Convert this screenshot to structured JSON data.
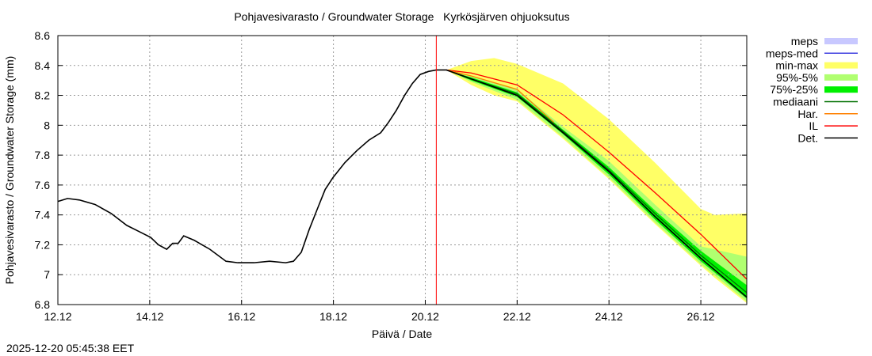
{
  "chart_data": {
    "type": "line",
    "title": "Pohjavesivarasto / Groundwater Storage   Kyrkösjärven ohjuoksutus",
    "xlabel": "Päivä / Date",
    "ylabel": "Pohjavesivarasto / Groundwater Storage (mm)",
    "timestamp": "2025-12-20 05:45:38 EET",
    "xlim": [
      12,
      27
    ],
    "ylim": [
      6.8,
      8.6
    ],
    "grid": true,
    "legend_position": "outside-right",
    "x_unit": "day of December 2025",
    "xticks": [
      {
        "v": 12,
        "label": "12.12"
      },
      {
        "v": 14,
        "label": "14.12"
      },
      {
        "v": 16,
        "label": "16.12"
      },
      {
        "v": 18,
        "label": "18.12"
      },
      {
        "v": 20,
        "label": "20.12"
      },
      {
        "v": 22,
        "label": "22.12"
      },
      {
        "v": 24,
        "label": "24.12"
      },
      {
        "v": 26,
        "label": "26.12"
      }
    ],
    "yticks": [
      {
        "v": 6.8,
        "label": "6.8"
      },
      {
        "v": 7,
        "label": "7"
      },
      {
        "v": 7.2,
        "label": "7.2"
      },
      {
        "v": 7.4,
        "label": "7.4"
      },
      {
        "v": 7.6,
        "label": "7.6"
      },
      {
        "v": 7.8,
        "label": "7.8"
      },
      {
        "v": 8,
        "label": "8"
      },
      {
        "v": 8.2,
        "label": "8.2"
      },
      {
        "v": 8.4,
        "label": "8.4"
      },
      {
        "v": 8.6,
        "label": "8.6"
      }
    ],
    "forecast_start": 20.24,
    "legend": [
      {
        "name": "meps",
        "color": "#c8c8ff",
        "kind": "band"
      },
      {
        "name": "meps-med",
        "color": "#4040e0",
        "kind": "line"
      },
      {
        "name": "min-max",
        "color": "#ffff66",
        "kind": "band"
      },
      {
        "name": "95%-5%",
        "color": "#b0ff70",
        "kind": "band"
      },
      {
        "name": "75%-25%",
        "color": "#00f000",
        "kind": "band"
      },
      {
        "name": "mediaani",
        "color": "#007000",
        "kind": "line"
      },
      {
        "name": "Har.",
        "color": "#ff8000",
        "kind": "line"
      },
      {
        "name": "IL",
        "color": "#ff0000",
        "kind": "line"
      },
      {
        "name": "Det.",
        "color": "#000000",
        "kind": "line"
      }
    ],
    "bands": {
      "min-max": {
        "x": [
          20.46,
          21.0,
          21.5,
          22.0,
          23.0,
          24.0,
          25.0,
          26.0,
          26.3,
          27.0
        ],
        "upper": [
          8.37,
          8.43,
          8.45,
          8.41,
          8.28,
          8.04,
          7.75,
          7.44,
          7.4,
          7.41
        ],
        "lower": [
          8.37,
          8.27,
          8.2,
          8.16,
          7.91,
          7.64,
          7.34,
          7.06,
          6.98,
          6.81
        ]
      },
      "95%-5%": {
        "x": [
          20.46,
          21.0,
          22.0,
          23.0,
          24.0,
          25.0,
          26.0,
          27.0
        ],
        "upper": [
          8.37,
          8.33,
          8.24,
          7.99,
          7.76,
          7.47,
          7.19,
          7.12
        ],
        "lower": [
          8.37,
          8.29,
          8.17,
          7.92,
          7.65,
          7.35,
          7.07,
          6.82
        ]
      },
      "75%-25%": {
        "x": [
          20.46,
          21.0,
          22.0,
          23.0,
          24.0,
          25.0,
          26.0,
          27.0
        ],
        "upper": [
          8.37,
          8.32,
          8.22,
          7.97,
          7.72,
          7.43,
          7.16,
          6.93
        ],
        "lower": [
          8.37,
          8.3,
          8.19,
          7.94,
          7.67,
          7.37,
          7.09,
          6.84
        ]
      }
    },
    "series": [
      {
        "name": "Det.",
        "x": [
          12.0,
          12.21,
          12.47,
          12.81,
          13.16,
          13.5,
          13.76,
          14.02,
          14.19,
          14.37,
          14.5,
          14.62,
          14.74,
          14.97,
          15.31,
          15.66,
          15.92,
          16.27,
          16.61,
          16.96,
          17.13,
          17.3,
          17.47,
          17.65,
          17.82,
          17.99,
          18.25,
          18.51,
          18.77,
          19.03,
          19.2,
          19.37,
          19.55,
          19.72,
          19.89,
          20.07,
          20.24,
          20.46,
          21.0,
          22.0,
          23.0,
          24.0,
          25.0,
          26.0,
          27.0
        ],
        "y": [
          7.49,
          7.51,
          7.5,
          7.47,
          7.41,
          7.33,
          7.29,
          7.25,
          7.2,
          7.17,
          7.21,
          7.21,
          7.26,
          7.23,
          7.17,
          7.09,
          7.08,
          7.08,
          7.09,
          7.08,
          7.09,
          7.15,
          7.3,
          7.44,
          7.57,
          7.65,
          7.75,
          7.83,
          7.9,
          7.95,
          8.02,
          8.1,
          8.2,
          8.28,
          8.34,
          8.36,
          8.37,
          8.37,
          8.31,
          8.2,
          7.95,
          7.69,
          7.39,
          7.11,
          6.85
        ]
      },
      {
        "name": "mediaani",
        "x": [
          20.46,
          21.0,
          22.0,
          23.0,
          24.0,
          25.0,
          26.0,
          27.0
        ],
        "y": [
          8.37,
          8.31,
          8.21,
          7.96,
          7.7,
          7.41,
          7.13,
          6.88
        ]
      },
      {
        "name": "Har.",
        "x": [
          20.46,
          21.0,
          22.0,
          22.8
        ],
        "y": [
          8.37,
          8.33,
          8.24,
          8.02
        ]
      },
      {
        "name": "IL",
        "x": [
          20.46,
          21.0,
          22.0,
          23.0,
          24.0,
          25.0,
          26.0,
          27.0
        ],
        "y": [
          8.37,
          8.35,
          8.27,
          8.07,
          7.82,
          7.55,
          7.27,
          6.97
        ]
      }
    ]
  }
}
